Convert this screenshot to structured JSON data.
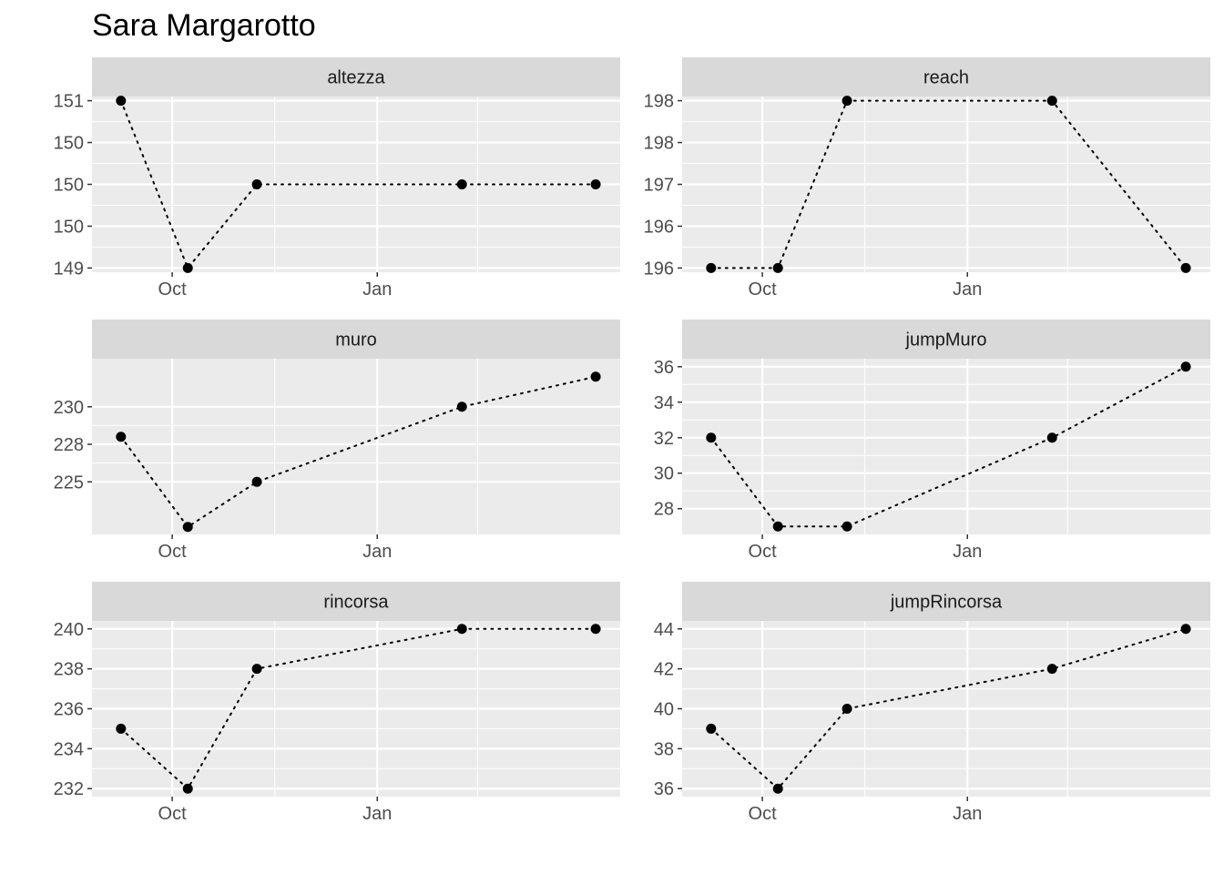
{
  "title": "Sara Margarotto",
  "chart_data": [
    {
      "type": "line",
      "panel": "altezza",
      "x": [
        "2023-09-08",
        "2023-10-08",
        "2023-11-08",
        "2024-02-08",
        "2024-04-08"
      ],
      "y": [
        151,
        149,
        150,
        150,
        150
      ],
      "y_tick_labels": [
        "151",
        "150",
        "150",
        "150",
        "149"
      ],
      "x_tick_labels": [
        "Oct",
        "Jan"
      ],
      "line_style": "dotted"
    },
    {
      "type": "line",
      "panel": "reach",
      "x": [
        "2023-09-08",
        "2023-10-08",
        "2023-11-08",
        "2024-02-08",
        "2024-04-08"
      ],
      "y": [
        196,
        196,
        198,
        198,
        196
      ],
      "y_tick_labels": [
        "198",
        "198",
        "197",
        "196",
        "196"
      ],
      "x_tick_labels": [
        "Oct",
        "Jan"
      ],
      "line_style": "dotted"
    },
    {
      "type": "line",
      "panel": "muro",
      "x": [
        "2023-09-08",
        "2023-10-08",
        "2023-11-08",
        "2024-02-08",
        "2024-04-08"
      ],
      "y": [
        228,
        222,
        225,
        230,
        232
      ],
      "y_tick_labels": [
        "230",
        "228",
        "225"
      ],
      "x_tick_labels": [
        "Oct",
        "Jan"
      ],
      "line_style": "dotted"
    },
    {
      "type": "line",
      "panel": "jumpMuro",
      "x": [
        "2023-09-08",
        "2023-10-08",
        "2023-11-08",
        "2024-02-08",
        "2024-04-08"
      ],
      "y": [
        32,
        27,
        27,
        32,
        36
      ],
      "y_tick_labels": [
        "36",
        "34",
        "32",
        "30",
        "28"
      ],
      "x_tick_labels": [
        "Oct",
        "Jan"
      ],
      "line_style": "dotted"
    },
    {
      "type": "line",
      "panel": "rincorsa",
      "x": [
        "2023-09-08",
        "2023-10-08",
        "2023-11-08",
        "2024-02-08",
        "2024-04-08"
      ],
      "y": [
        235,
        232,
        238,
        240,
        240
      ],
      "y_tick_labels": [
        "240",
        "238",
        "236",
        "234",
        "232"
      ],
      "x_tick_labels": [
        "Oct",
        "Jan"
      ],
      "line_style": "dotted"
    },
    {
      "type": "line",
      "panel": "jumpRincorsa",
      "x": [
        "2023-09-08",
        "2023-10-08",
        "2023-11-08",
        "2024-02-08",
        "2024-04-08"
      ],
      "y": [
        39,
        36,
        40,
        42,
        44
      ],
      "y_tick_labels": [
        "44",
        "42",
        "40",
        "38",
        "36"
      ],
      "x_tick_labels": [
        "Oct",
        "Jan"
      ],
      "line_style": "dotted"
    }
  ],
  "style": {
    "panel_background": "#ebebeb",
    "strip_background": "#d9d9d9",
    "grid_color": "#ffffff",
    "point_color": "#000000",
    "tick_text_color": "#4d4d4d"
  }
}
